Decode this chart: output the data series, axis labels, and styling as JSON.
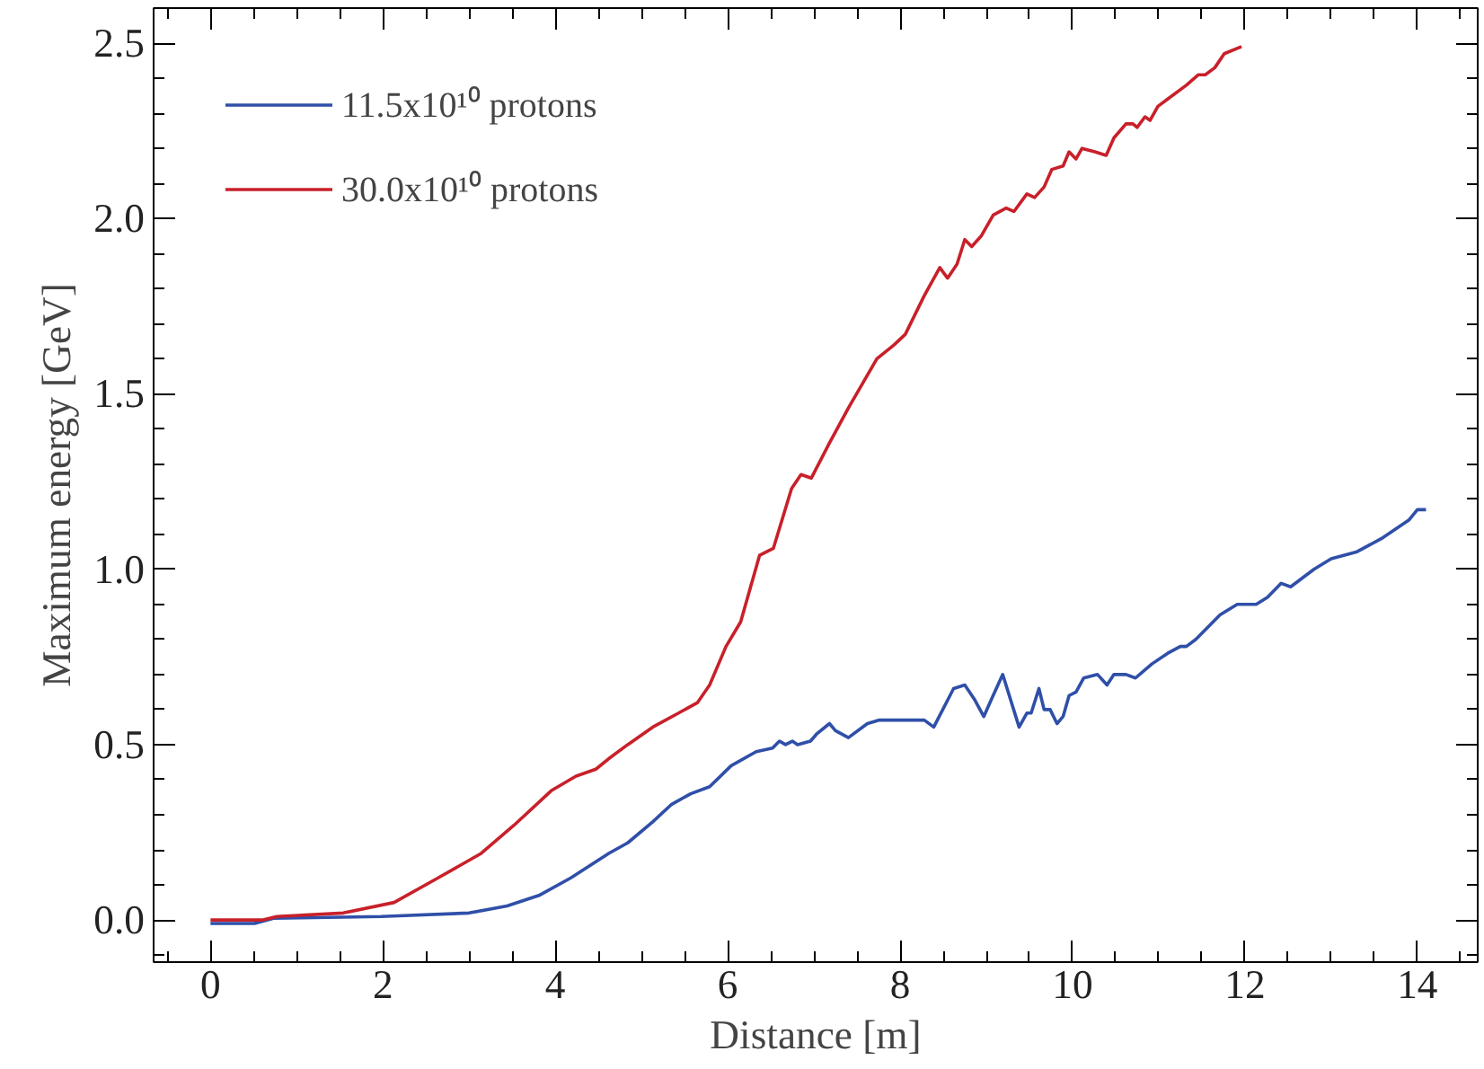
{
  "chart_data": {
    "type": "line",
    "xlabel": "Distance [m]",
    "ylabel": "Maximum energy [GeV]",
    "xlim": [
      -0.66,
      14.7
    ],
    "ylim": [
      -0.12,
      2.6
    ],
    "xticks": [
      0,
      2,
      4,
      6,
      8,
      10,
      12,
      14
    ],
    "yticks": [
      {
        "value": 0,
        "label": "0.0"
      },
      {
        "value": 0.5,
        "label": "0.5"
      },
      {
        "value": 1,
        "label": "1.0"
      },
      {
        "value": 1.5,
        "label": "1.5"
      },
      {
        "value": 2,
        "label": "2.0"
      },
      {
        "value": 2.5,
        "label": "2.5"
      }
    ],
    "grid": false,
    "legend": "top left",
    "line_style": "solid",
    "marker": "none",
    "series": [
      {
        "name": "11.5x10¹⁰ protons",
        "color": "#2f4fa8",
        "x": [
          0,
          0.51,
          0.73,
          1.98,
          3.0,
          3.44,
          3.81,
          4.18,
          4.62,
          4.84,
          5.13,
          5.35,
          5.57,
          5.79,
          6.04,
          6.33,
          6.52,
          6.6,
          6.67,
          6.75,
          6.81,
          6.96,
          7.03,
          7.18,
          7.25,
          7.4,
          7.62,
          7.76,
          8.07,
          8.28,
          8.39,
          8.62,
          8.75,
          8.86,
          8.97,
          9.06,
          9.19,
          9.38,
          9.47,
          9.52,
          9.61,
          9.67,
          9.74,
          9.82,
          9.89,
          9.96,
          10.04,
          10.13,
          10.29,
          10.4,
          10.48,
          10.62,
          10.73,
          10.92,
          11.1,
          11.25,
          11.32,
          11.43,
          11.71,
          11.91,
          12.13,
          12.26,
          12.42,
          12.53,
          12.8,
          13.0,
          13.3,
          13.6,
          13.9,
          14.0,
          14.1
        ],
        "values": [
          -0.01,
          -0.01,
          0.005,
          0.01,
          0.02,
          0.04,
          0.07,
          0.12,
          0.19,
          0.22,
          0.28,
          0.33,
          0.36,
          0.38,
          0.44,
          0.48,
          0.49,
          0.51,
          0.5,
          0.51,
          0.5,
          0.51,
          0.53,
          0.56,
          0.54,
          0.52,
          0.56,
          0.57,
          0.57,
          0.57,
          0.55,
          0.66,
          0.67,
          0.63,
          0.58,
          0.63,
          0.7,
          0.55,
          0.59,
          0.59,
          0.66,
          0.6,
          0.6,
          0.56,
          0.58,
          0.64,
          0.65,
          0.69,
          0.7,
          0.67,
          0.7,
          0.7,
          0.69,
          0.73,
          0.76,
          0.78,
          0.78,
          0.8,
          0.87,
          0.9,
          0.9,
          0.92,
          0.96,
          0.95,
          1.0,
          1.03,
          1.05,
          1.09,
          1.14,
          1.17,
          1.17
        ]
      },
      {
        "name": "30.0x10¹⁰ protons",
        "color": "#c8202a",
        "x": [
          0,
          0.6,
          0.77,
          1.54,
          2.13,
          2.64,
          3.14,
          3.52,
          3.96,
          4.24,
          4.47,
          4.62,
          4.84,
          5.13,
          5.43,
          5.65,
          5.79,
          5.98,
          6.15,
          6.37,
          6.53,
          6.74,
          6.85,
          6.97,
          7.18,
          7.4,
          7.73,
          7.93,
          8.06,
          8.28,
          8.46,
          8.55,
          8.66,
          8.75,
          8.83,
          8.94,
          9.08,
          9.23,
          9.32,
          9.47,
          9.56,
          9.67,
          9.76,
          9.89,
          9.96,
          10.04,
          10.11,
          10.26,
          10.39,
          10.48,
          10.62,
          10.7,
          10.75,
          10.84,
          10.9,
          10.99,
          11.1,
          11.32,
          11.46,
          11.54,
          11.65,
          11.76,
          11.96
        ],
        "values": [
          0.0,
          0.0,
          0.01,
          0.02,
          0.05,
          0.12,
          0.19,
          0.27,
          0.37,
          0.41,
          0.43,
          0.46,
          0.5,
          0.55,
          0.59,
          0.62,
          0.67,
          0.78,
          0.85,
          1.04,
          1.06,
          1.23,
          1.27,
          1.26,
          1.36,
          1.46,
          1.6,
          1.64,
          1.67,
          1.78,
          1.86,
          1.83,
          1.87,
          1.94,
          1.92,
          1.95,
          2.01,
          2.03,
          2.02,
          2.07,
          2.06,
          2.09,
          2.14,
          2.15,
          2.19,
          2.17,
          2.2,
          2.19,
          2.18,
          2.23,
          2.27,
          2.27,
          2.26,
          2.29,
          2.28,
          2.32,
          2.34,
          2.38,
          2.41,
          2.41,
          2.43,
          2.47,
          2.49
        ]
      }
    ]
  }
}
